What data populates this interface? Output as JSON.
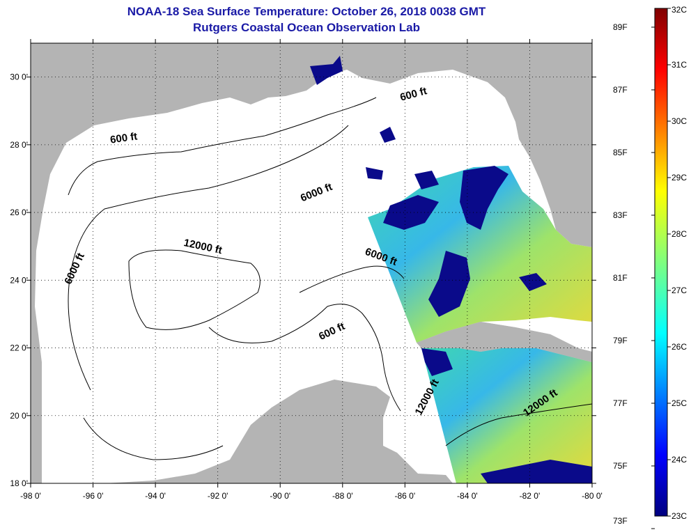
{
  "header": {
    "title": "NOAA-18 Sea Surface Temperature:  October 26, 2018 0038 GMT",
    "subtitle": "Rutgers Coastal Ocean Observation Lab"
  },
  "map": {
    "lon_range": [
      -98,
      -80
    ],
    "lat_range": [
      18,
      31
    ],
    "lon_ticks": [
      {
        "value": -98,
        "label": "-98 0'"
      },
      {
        "value": -96,
        "label": "-96 0'"
      },
      {
        "value": -94,
        "label": "-94 0'"
      },
      {
        "value": -92,
        "label": "-92 0'"
      },
      {
        "value": -90,
        "label": "-90 0'"
      },
      {
        "value": -88,
        "label": "-88 0'"
      },
      {
        "value": -86,
        "label": "-86 0'"
      },
      {
        "value": -84,
        "label": "-84 0'"
      },
      {
        "value": -82,
        "label": "-82 0'"
      },
      {
        "value": -80,
        "label": "-80 0'"
      }
    ],
    "lat_ticks": [
      {
        "value": 30,
        "label": "30 0'"
      },
      {
        "value": 28,
        "label": "28 0'"
      },
      {
        "value": 26,
        "label": "26 0'"
      },
      {
        "value": 24,
        "label": "24 0'"
      },
      {
        "value": 22,
        "label": "22 0'"
      },
      {
        "value": 20,
        "label": "20 0'"
      },
      {
        "value": 18,
        "label": "18 0'"
      }
    ],
    "grid": true,
    "contour_labels": [
      {
        "text": "600 ft",
        "lon": -85.7,
        "lat": 29.4,
        "angle": -15
      },
      {
        "text": "600 ft",
        "lon": -95.0,
        "lat": 28.1,
        "angle": -8
      },
      {
        "text": "6000 ft",
        "lon": -88.8,
        "lat": 26.5,
        "angle": -22
      },
      {
        "text": "6000 ft",
        "lon": -96.5,
        "lat": 24.3,
        "angle": -65
      },
      {
        "text": "12000 ft",
        "lon": -92.5,
        "lat": 24.9,
        "angle": 12
      },
      {
        "text": "6000 ft",
        "lon": -86.8,
        "lat": 24.6,
        "angle": 20
      },
      {
        "text": "600 ft",
        "lon": -88.3,
        "lat": 22.4,
        "angle": -25
      },
      {
        "text": "12000 ft",
        "lon": -85.2,
        "lat": 20.5,
        "angle": -62
      },
      {
        "text": "12000 ft",
        "lon": -81.6,
        "lat": 20.3,
        "angle": -35
      }
    ],
    "colors": {
      "land": "#b4b4b4",
      "ocean": "#ffffff",
      "grid": "#000000"
    }
  },
  "colorbar": {
    "min_c": 23,
    "max_c": 32,
    "celsius_labels": [
      "32C",
      "31C",
      "30C",
      "29C",
      "28C",
      "27C",
      "26C",
      "25C",
      "24C",
      "23C"
    ],
    "fahrenheit_labels": [
      {
        "value": 89,
        "label": "89F"
      },
      {
        "value": 87,
        "label": "87F"
      },
      {
        "value": 85,
        "label": "85F"
      },
      {
        "value": 83,
        "label": "83F"
      },
      {
        "value": 81,
        "label": "81F"
      },
      {
        "value": 79,
        "label": "79F"
      },
      {
        "value": 77,
        "label": "77F"
      },
      {
        "value": 75,
        "label": "75F"
      },
      {
        "value": 73,
        "label": "73F"
      }
    ]
  }
}
